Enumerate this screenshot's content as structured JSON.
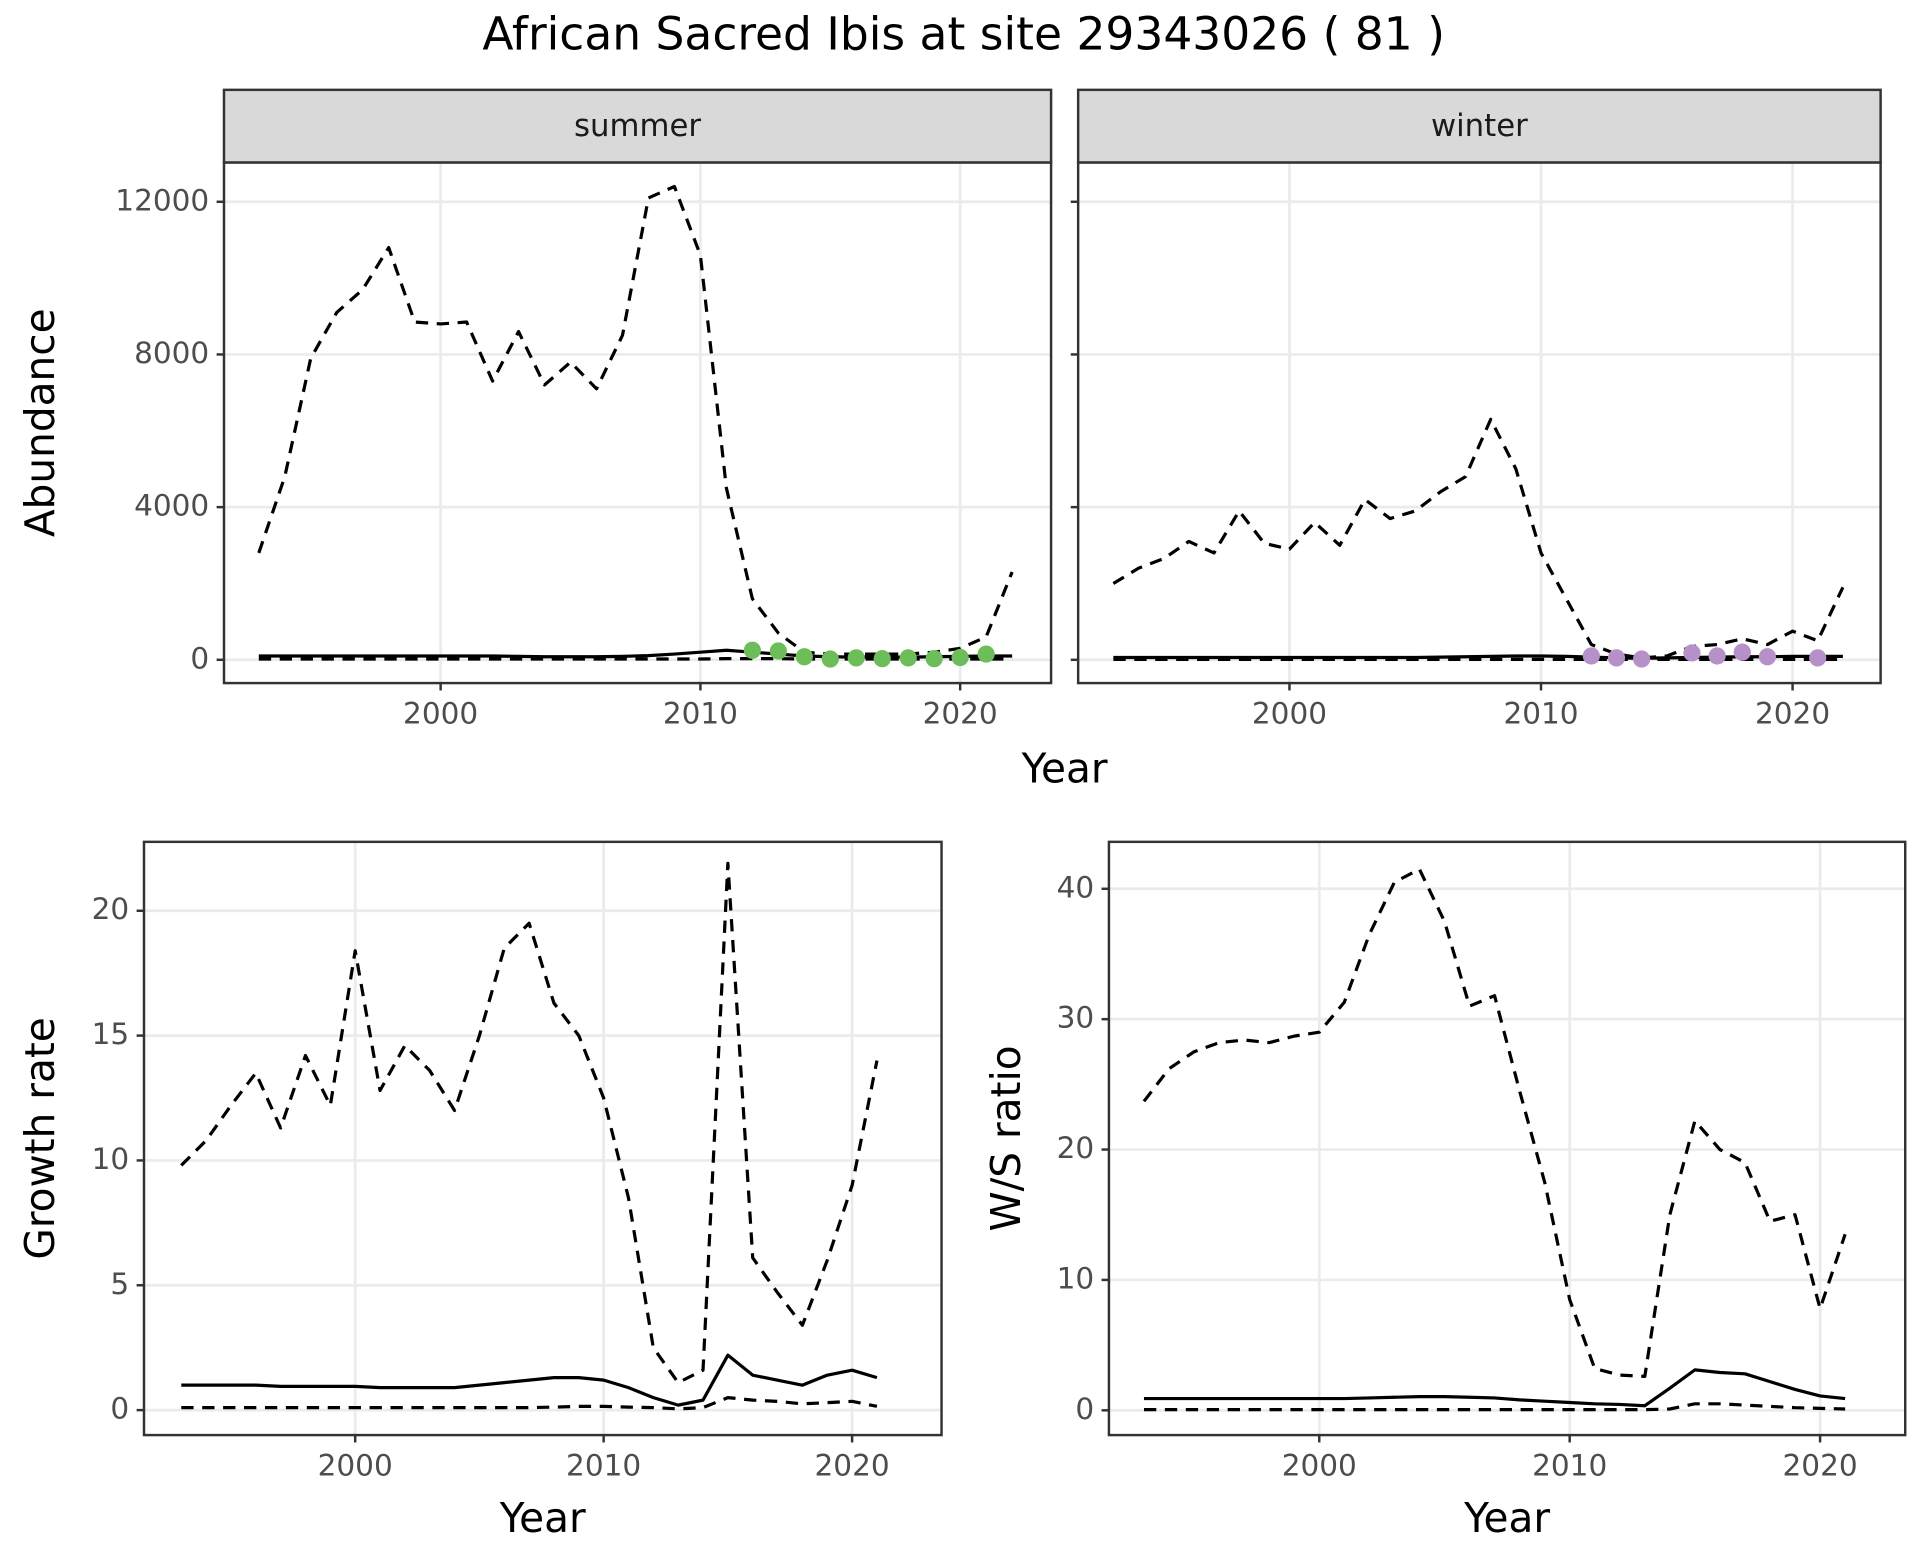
{
  "title": "African Sacred Ibis at site 29343026 ( 81 )",
  "top_xlabel": "Year",
  "chart_data": [
    {
      "type": "line",
      "facet": "summer",
      "ylabel": "Abundance",
      "x": [
        1993,
        1994,
        1995,
        1996,
        1997,
        1998,
        1999,
        2000,
        2001,
        2002,
        2003,
        2004,
        2005,
        2006,
        2007,
        2008,
        2009,
        2010,
        2011,
        2012,
        2013,
        2014,
        2015,
        2016,
        2017,
        2018,
        2019,
        2020,
        2021,
        2022
      ],
      "xlim": [
        1991.66,
        2023.5
      ],
      "xticks": [
        2000,
        2010,
        2020
      ],
      "ylim": [
        -610,
        13030
      ],
      "yticks": [
        0,
        4000,
        8000,
        12000
      ],
      "grid": true,
      "series": [
        {
          "style": "dashed",
          "color": "#000000",
          "values": [
            2800,
            4800,
            7900,
            9100,
            9700,
            10800,
            8850,
            8800,
            8850,
            7300,
            8600,
            7200,
            7800,
            7100,
            8500,
            12100,
            12400,
            10600,
            4500,
            1600,
            700,
            200,
            150,
            150,
            150,
            150,
            200,
            300,
            600,
            2300
          ]
        },
        {
          "style": "solid",
          "color": "#000000",
          "values": [
            100,
            100,
            100,
            100,
            100,
            100,
            100,
            100,
            100,
            100,
            90,
            80,
            80,
            80,
            90,
            110,
            150,
            200,
            250,
            200,
            150,
            100,
            80,
            70,
            70,
            70,
            80,
            90,
            100,
            100
          ]
        },
        {
          "style": "dashed",
          "color": "#000000",
          "values": [
            20,
            20,
            20,
            20,
            20,
            20,
            20,
            20,
            20,
            20,
            20,
            20,
            20,
            20,
            20,
            20,
            20,
            20,
            30,
            30,
            30,
            20,
            20,
            20,
            20,
            20,
            20,
            20,
            20,
            20
          ]
        },
        {
          "style": "points",
          "color": "#6DBE5A",
          "x": [
            2012,
            2013,
            2014,
            2015,
            2016,
            2017,
            2018,
            2019,
            2020,
            2021
          ],
          "values": [
            250,
            230,
            80,
            20,
            50,
            30,
            50,
            30,
            60,
            150
          ]
        }
      ]
    },
    {
      "type": "line",
      "facet": "winter",
      "x": [
        1993,
        1994,
        1995,
        1996,
        1997,
        1998,
        1999,
        2000,
        2001,
        2002,
        2003,
        2004,
        2005,
        2006,
        2007,
        2008,
        2009,
        2010,
        2011,
        2012,
        2013,
        2014,
        2015,
        2016,
        2017,
        2018,
        2019,
        2020,
        2021,
        2022
      ],
      "xlim": [
        1991.6,
        2023.5
      ],
      "xticks": [
        2000,
        2010,
        2020
      ],
      "ylim": [
        -610,
        13030
      ],
      "yticks": [
        0,
        4000,
        8000,
        12000
      ],
      "grid": true,
      "series": [
        {
          "style": "dashed",
          "color": "#000000",
          "values": [
            2000,
            2400,
            2650,
            3100,
            2800,
            3900,
            3050,
            2900,
            3600,
            3000,
            4200,
            3700,
            3900,
            4400,
            4800,
            6300,
            5000,
            2800,
            1600,
            400,
            150,
            50,
            100,
            350,
            400,
            550,
            400,
            750,
            500,
            1900
          ]
        },
        {
          "style": "solid",
          "color": "#000000",
          "values": [
            60,
            60,
            60,
            60,
            60,
            60,
            60,
            60,
            60,
            60,
            60,
            60,
            60,
            70,
            80,
            90,
            100,
            100,
            90,
            70,
            50,
            40,
            50,
            60,
            70,
            80,
            80,
            90,
            90,
            90
          ]
        },
        {
          "style": "dashed",
          "color": "#000000",
          "values": [
            10,
            10,
            10,
            10,
            10,
            10,
            10,
            10,
            10,
            10,
            10,
            10,
            10,
            10,
            10,
            10,
            10,
            10,
            10,
            10,
            10,
            10,
            10,
            10,
            10,
            10,
            10,
            10,
            10,
            10
          ]
        },
        {
          "style": "points",
          "color": "#B691C9",
          "x": [
            2012,
            2013,
            2014,
            2016,
            2017,
            2018,
            2019,
            2021
          ],
          "values": [
            100,
            50,
            20,
            180,
            100,
            200,
            80,
            50
          ]
        }
      ]
    },
    {
      "type": "line",
      "xlabel": "Year",
      "ylabel": "Growth rate",
      "x": [
        1993,
        1994,
        1995,
        1996,
        1997,
        1998,
        1999,
        2000,
        2001,
        2002,
        2003,
        2004,
        2005,
        2006,
        2007,
        2008,
        2009,
        2010,
        2011,
        2012,
        2013,
        2014,
        2015,
        2016,
        2017,
        2018,
        2019,
        2020,
        2021
      ],
      "xlim": [
        1991.5,
        2023.6
      ],
      "xticks": [
        2000,
        2010,
        2020
      ],
      "ylim": [
        -1.0,
        22.76
      ],
      "yticks": [
        0,
        5,
        10,
        15,
        20
      ],
      "grid": true,
      "series": [
        {
          "style": "dashed",
          "color": "#000000",
          "values": [
            9.8,
            10.8,
            12.2,
            13.5,
            11.3,
            14.2,
            12.2,
            18.4,
            12.8,
            14.6,
            13.6,
            12.0,
            15.0,
            18.5,
            19.5,
            16.3,
            15.0,
            12.5,
            8.5,
            2.5,
            1.1,
            1.6,
            21.9,
            6.1,
            4.7,
            3.4,
            6.0,
            9.0,
            14.0
          ]
        },
        {
          "style": "solid",
          "color": "#000000",
          "values": [
            1.0,
            1.0,
            1.0,
            1.0,
            0.95,
            0.95,
            0.95,
            0.95,
            0.9,
            0.9,
            0.9,
            0.9,
            1.0,
            1.1,
            1.2,
            1.3,
            1.3,
            1.2,
            0.9,
            0.5,
            0.2,
            0.4,
            2.2,
            1.4,
            1.2,
            1.0,
            1.4,
            1.6,
            1.3
          ]
        },
        {
          "style": "dashed",
          "color": "#000000",
          "values": [
            0.1,
            0.1,
            0.1,
            0.1,
            0.1,
            0.1,
            0.1,
            0.1,
            0.1,
            0.1,
            0.1,
            0.1,
            0.1,
            0.1,
            0.1,
            0.12,
            0.15,
            0.15,
            0.12,
            0.1,
            0.05,
            0.1,
            0.5,
            0.4,
            0.35,
            0.25,
            0.3,
            0.35,
            0.15
          ]
        }
      ]
    },
    {
      "type": "line",
      "xlabel": "Year",
      "ylabel": "W/S ratio",
      "x": [
        1993,
        1994,
        1995,
        1996,
        1997,
        1998,
        1999,
        2000,
        2001,
        2002,
        2003,
        2004,
        2005,
        2006,
        2007,
        2008,
        2009,
        2010,
        2011,
        2012,
        2013,
        2014,
        2015,
        2016,
        2017,
        2018,
        2019,
        2020,
        2021
      ],
      "xlim": [
        1991.6,
        2023.4
      ],
      "xticks": [
        2000,
        2010,
        2020
      ],
      "ylim": [
        -1.9,
        43.6
      ],
      "yticks": [
        0,
        10,
        20,
        30,
        40
      ],
      "grid": true,
      "series": [
        {
          "style": "dashed",
          "color": "#000000",
          "values": [
            23.7,
            26.2,
            27.5,
            28.2,
            28.4,
            28.2,
            28.7,
            29.0,
            31.3,
            36.5,
            40.5,
            41.5,
            37.5,
            31.0,
            31.8,
            24.5,
            17.5,
            8.5,
            3.2,
            2.7,
            2.6,
            15.0,
            22.2,
            20.0,
            19.0,
            14.5,
            15.0,
            7.8,
            13.5
          ]
        },
        {
          "style": "solid",
          "color": "#000000",
          "values": [
            0.9,
            0.9,
            0.9,
            0.9,
            0.9,
            0.9,
            0.9,
            0.9,
            0.9,
            0.95,
            1.0,
            1.05,
            1.05,
            1.0,
            0.95,
            0.8,
            0.7,
            0.6,
            0.5,
            0.45,
            0.35,
            1.7,
            3.1,
            2.9,
            2.8,
            2.2,
            1.6,
            1.1,
            0.9
          ]
        },
        {
          "style": "dashed",
          "color": "#000000",
          "values": [
            0.05,
            0.05,
            0.05,
            0.05,
            0.05,
            0.05,
            0.05,
            0.05,
            0.05,
            0.05,
            0.05,
            0.05,
            0.05,
            0.05,
            0.05,
            0.05,
            0.05,
            0.05,
            0.05,
            0.05,
            0.05,
            0.1,
            0.5,
            0.5,
            0.4,
            0.3,
            0.2,
            0.15,
            0.1
          ]
        }
      ]
    }
  ]
}
